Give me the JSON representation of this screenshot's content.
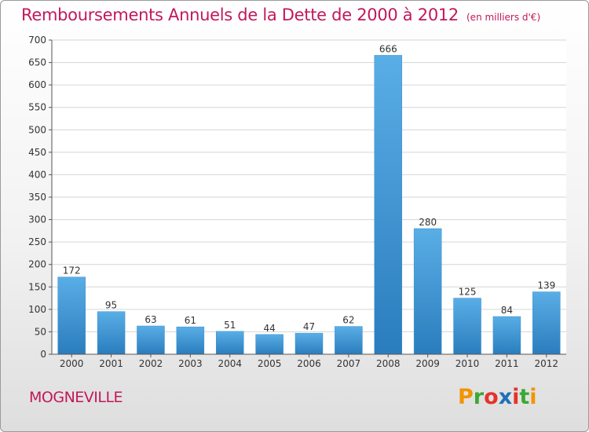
{
  "header": {
    "title": "Remboursements Annuels de la Dette de 2000 à 2012",
    "subtitle": "(en milliers d'€)"
  },
  "footer": {
    "commune": "MOGNEVILLE",
    "logo_text": "Proxiti"
  },
  "colors": {
    "title": "#c2185b",
    "bar_light": "#5aaee6",
    "bar_dark": "#2a7dbd",
    "logo": [
      "#f29400",
      "#3aa935",
      "#e6332a",
      "#1d71b8",
      "#e6332a",
      "#3aa935",
      "#f29400"
    ]
  },
  "chart_data": {
    "type": "bar",
    "categories": [
      "2000",
      "2001",
      "2002",
      "2003",
      "2004",
      "2005",
      "2006",
      "2007",
      "2008",
      "2009",
      "2010",
      "2011",
      "2012"
    ],
    "values": [
      172,
      95,
      63,
      61,
      51,
      44,
      47,
      62,
      666,
      280,
      125,
      84,
      139
    ],
    "data_labels": [
      "172",
      "95",
      "63",
      "61",
      "51",
      "44",
      "47",
      "62",
      "666",
      "280",
      "125",
      "84",
      "139"
    ],
    "ylim": [
      0,
      700
    ],
    "yticks": [
      0,
      50,
      100,
      150,
      200,
      250,
      300,
      350,
      400,
      450,
      500,
      550,
      600,
      650,
      700
    ],
    "grid": true,
    "xlabel": "",
    "ylabel": ""
  }
}
